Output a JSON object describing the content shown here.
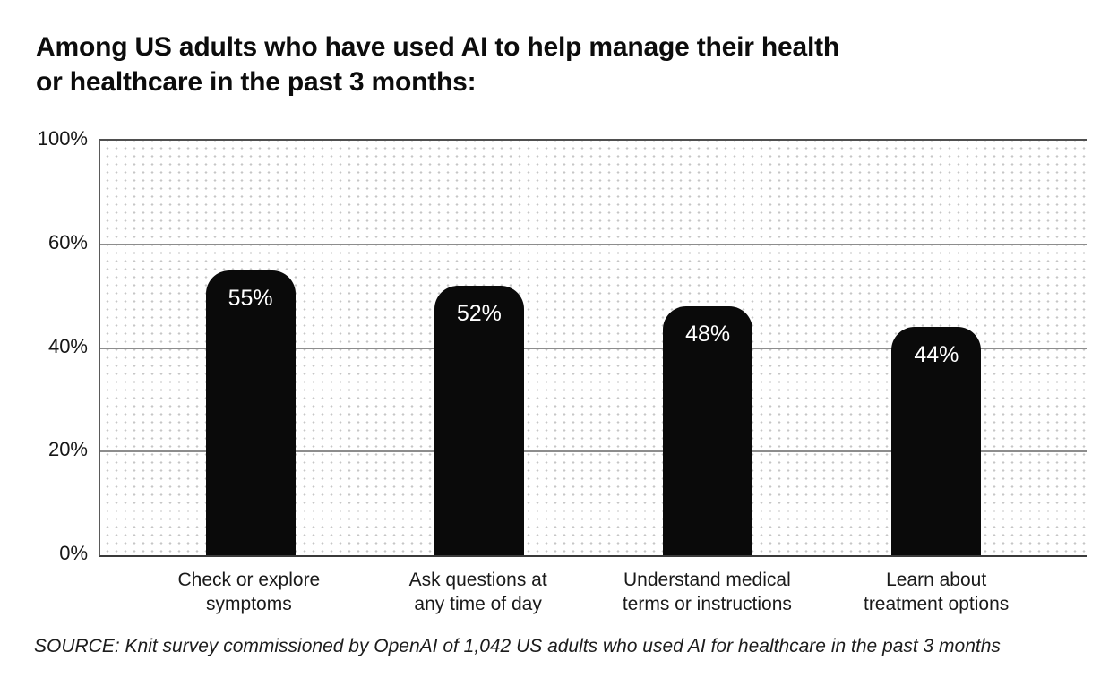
{
  "page": {
    "title": "Among US adults who have used AI to help manage their health\nor healthcare in the past 3 months:",
    "source": "SOURCE: Knit survey commissioned by OpenAI of 1,042 US adults who used AI for healthcare in the past 3 months"
  },
  "colors": {
    "background": "#ffffff",
    "bar": "#0a0a0a",
    "bar_label": "#ffffff",
    "gridline": "#8d8d8d",
    "axis_border": "#4f4f4f",
    "dot_pattern": "#c6c6c6",
    "text": "#0c0c0c"
  },
  "chart_data": {
    "type": "bar",
    "title": "Among US adults who have used AI to help manage their health or healthcare in the past 3 months:",
    "categories": [
      "Check or explore\nsymptoms",
      "Ask questions at\nany time of day",
      "Understand medical\nterms or instructions",
      "Learn about\ntreatment options"
    ],
    "values": [
      55,
      52,
      48,
      44
    ],
    "value_labels": [
      "55%",
      "52%",
      "48%",
      "44%"
    ],
    "y_ticks": [
      "0%",
      "20%",
      "40%",
      "60%",
      "100%"
    ],
    "xlabel": "",
    "ylabel": "",
    "ylim": [
      0,
      100
    ],
    "grid": true,
    "legend": false,
    "bar_color": "#0a0a0a",
    "dotted_plot_background": true,
    "axis_note": "gridlines evenly spaced per tick; top of plot labeled 100% with no 80% tick shown",
    "source": "SOURCE: Knit survey commissioned by OpenAI of 1,042 US adults who used AI for healthcare in the past 3 months"
  }
}
